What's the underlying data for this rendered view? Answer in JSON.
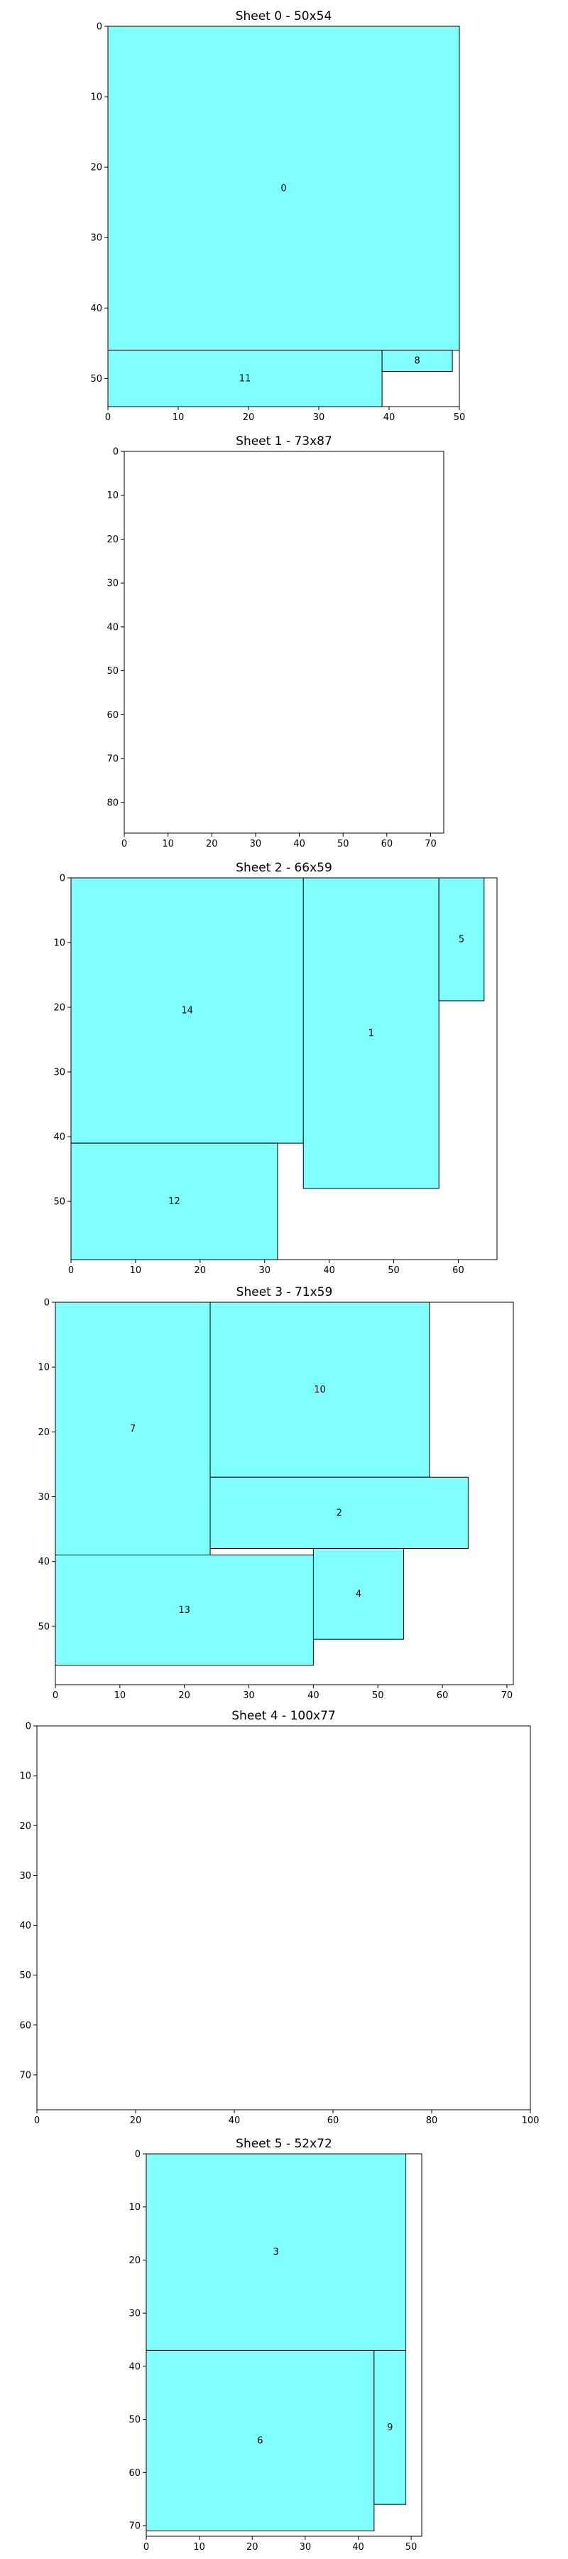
{
  "chart_data": [
    {
      "type": "rectangles",
      "title": "Sheet 0 - 50x54",
      "xlim": [
        0,
        50
      ],
      "ylim": [
        54,
        0
      ],
      "xticks": [
        0,
        10,
        20,
        30,
        40,
        50
      ],
      "yticks": [
        0,
        10,
        20,
        30,
        40,
        50
      ],
      "fill_color": "#80ffff",
      "rects": [
        {
          "label": "0",
          "x": 0,
          "y": 0,
          "w": 50,
          "h": 46
        },
        {
          "label": "11",
          "x": 0,
          "y": 46,
          "w": 39,
          "h": 8
        },
        {
          "label": "8",
          "x": 39,
          "y": 46,
          "w": 10,
          "h": 3
        }
      ]
    },
    {
      "type": "rectangles",
      "title": "Sheet 1 - 73x87",
      "xlim": [
        0,
        73
      ],
      "ylim": [
        87,
        0
      ],
      "xticks": [
        0,
        10,
        20,
        30,
        40,
        50,
        60,
        70
      ],
      "yticks": [
        0,
        10,
        20,
        30,
        40,
        50,
        60,
        70,
        80
      ],
      "fill_color": "#80ffff",
      "rects": []
    },
    {
      "type": "rectangles",
      "title": "Sheet 2 - 66x59",
      "xlim": [
        0,
        66
      ],
      "ylim": [
        59,
        0
      ],
      "xticks": [
        0,
        10,
        20,
        30,
        40,
        50,
        60
      ],
      "yticks": [
        0,
        10,
        20,
        30,
        40,
        50
      ],
      "fill_color": "#80ffff",
      "rects": [
        {
          "label": "14",
          "x": 0,
          "y": 0,
          "w": 36,
          "h": 41
        },
        {
          "label": "1",
          "x": 36,
          "y": 0,
          "w": 21,
          "h": 48
        },
        {
          "label": "5",
          "x": 57,
          "y": 0,
          "w": 7,
          "h": 19
        },
        {
          "label": "12",
          "x": 0,
          "y": 41,
          "w": 32,
          "h": 18
        }
      ]
    },
    {
      "type": "rectangles",
      "title": "Sheet 3 - 71x59",
      "xlim": [
        0,
        71
      ],
      "ylim": [
        59,
        0
      ],
      "xticks": [
        0,
        10,
        20,
        30,
        40,
        50,
        60,
        70
      ],
      "yticks": [
        0,
        10,
        20,
        30,
        40,
        50
      ],
      "fill_color": "#80ffff",
      "rects": [
        {
          "label": "7",
          "x": 0,
          "y": 0,
          "w": 24,
          "h": 39
        },
        {
          "label": "10",
          "x": 24,
          "y": 0,
          "w": 34,
          "h": 27
        },
        {
          "label": "2",
          "x": 24,
          "y": 27,
          "w": 40,
          "h": 11
        },
        {
          "label": "4",
          "x": 40,
          "y": 38,
          "w": 14,
          "h": 14
        },
        {
          "label": "13",
          "x": 0,
          "y": 39,
          "w": 40,
          "h": 17
        }
      ]
    },
    {
      "type": "rectangles",
      "title": "Sheet 4 - 100x77",
      "xlim": [
        0,
        100
      ],
      "ylim": [
        77,
        0
      ],
      "xticks": [
        0,
        20,
        40,
        60,
        80,
        100
      ],
      "yticks": [
        0,
        10,
        20,
        30,
        40,
        50,
        60,
        70
      ],
      "fill_color": "#80ffff",
      "rects": []
    },
    {
      "type": "rectangles",
      "title": "Sheet 5 - 52x72",
      "xlim": [
        0,
        52
      ],
      "ylim": [
        72,
        0
      ],
      "xticks": [
        0,
        10,
        20,
        30,
        40,
        50
      ],
      "yticks": [
        0,
        10,
        20,
        30,
        40,
        50,
        60,
        70
      ],
      "fill_color": "#80ffff",
      "rects": [
        {
          "label": "3",
          "x": 0,
          "y": 0,
          "w": 49,
          "h": 37
        },
        {
          "label": "6",
          "x": 0,
          "y": 37,
          "w": 43,
          "h": 34
        },
        {
          "label": "9",
          "x": 43,
          "y": 37,
          "w": 6,
          "h": 29
        }
      ]
    }
  ]
}
